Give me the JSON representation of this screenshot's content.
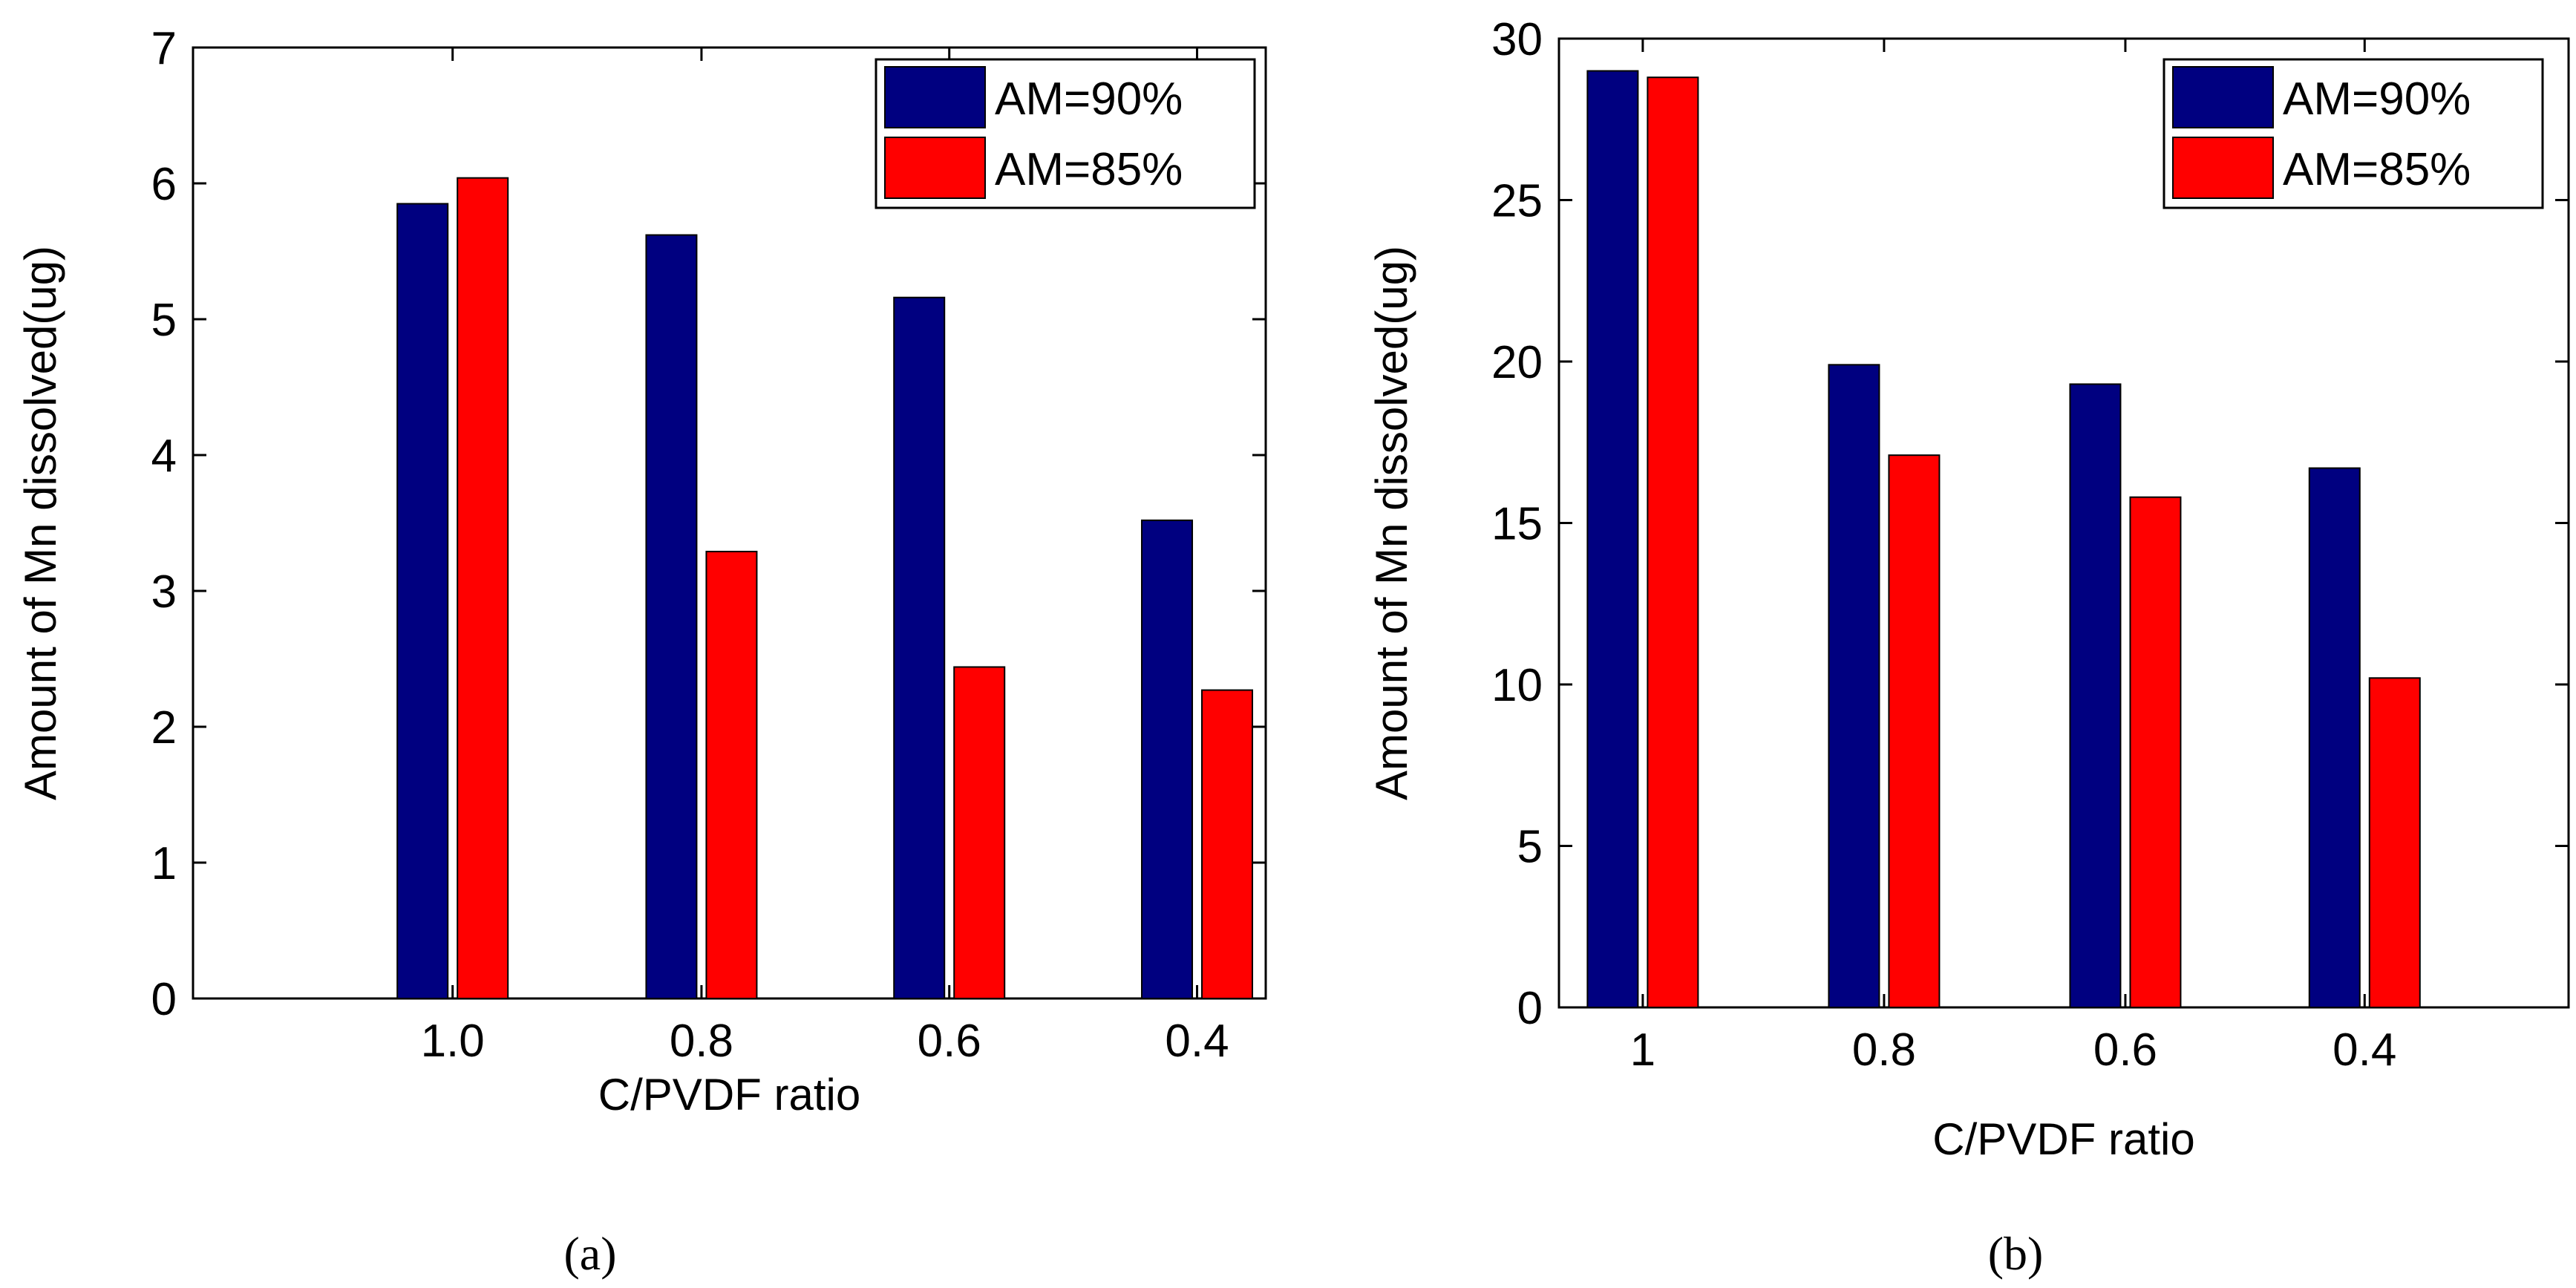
{
  "chart_data": [
    {
      "type": "bar",
      "panel_label": "(a)",
      "title": "",
      "xlabel": "C/PVDF ratio",
      "ylabel": "Amount of Mn dissolved(ug)",
      "categories": [
        "1.0",
        "0.8",
        "0.6",
        "0.4"
      ],
      "ylim": [
        0,
        7
      ],
      "yticks": [
        0,
        1,
        2,
        3,
        4,
        5,
        6,
        7
      ],
      "grid": false,
      "legend_position": "top-right",
      "series": [
        {
          "name": "AM=90%",
          "color": "#000080",
          "values": [
            5.85,
            5.62,
            5.16,
            3.52
          ]
        },
        {
          "name": "AM=85%",
          "color": "#ff0000",
          "values": [
            6.04,
            3.29,
            2.44,
            2.27
          ]
        }
      ]
    },
    {
      "type": "bar",
      "panel_label": "(b)",
      "title": "",
      "xlabel": "C/PVDF ratio",
      "ylabel": "Amount of Mn dissolved(ug)",
      "categories": [
        "1",
        "0.8",
        "0.6",
        "0.4"
      ],
      "ylim": [
        0,
        30
      ],
      "yticks": [
        0,
        5,
        10,
        15,
        20,
        25,
        30
      ],
      "grid": false,
      "legend_position": "top-right",
      "series": [
        {
          "name": "AM=90%",
          "color": "#000080",
          "values": [
            29.0,
            19.9,
            19.3,
            16.7
          ]
        },
        {
          "name": "AM=85%",
          "color": "#ff0000",
          "values": [
            28.8,
            17.1,
            15.8,
            10.2
          ]
        }
      ]
    }
  ]
}
